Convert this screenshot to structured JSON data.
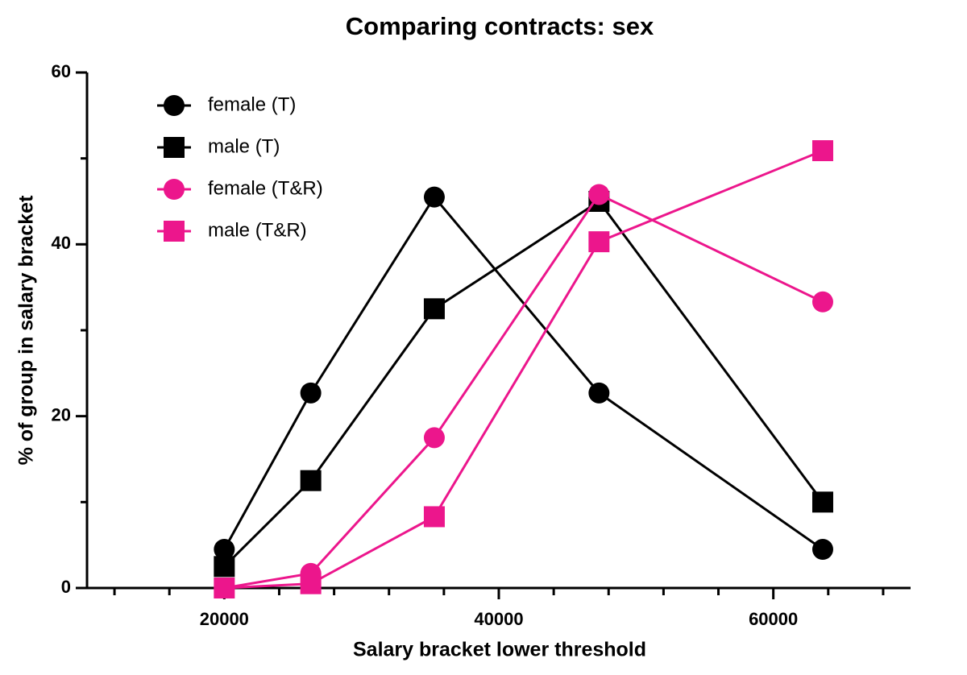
{
  "chart_data": {
    "type": "line",
    "title": "Comparing contracts: sex",
    "x_label": "Salary bracket lower threshold",
    "y_label": "% of group in salary bracket",
    "x": [
      20000,
      26300,
      35300,
      47300,
      63600
    ],
    "series": [
      {
        "name": "female (T)",
        "color": "#000000",
        "marker": "circle",
        "values": [
          4.5,
          22.7,
          45.5,
          22.7,
          4.5
        ]
      },
      {
        "name": "male (T)",
        "color": "#000000",
        "marker": "square",
        "values": [
          2.5,
          12.5,
          32.5,
          45,
          10
        ]
      },
      {
        "name": "female (T&R)",
        "color": "#ec168c",
        "marker": "circle",
        "values": [
          0,
          1.7,
          17.5,
          45.8,
          33.3
        ]
      },
      {
        "name": "male (T&R)",
        "color": "#ec168c",
        "marker": "square",
        "values": [
          0,
          0.5,
          8.3,
          40.3,
          50.9
        ]
      }
    ],
    "xlim": [
      10000,
      70000
    ],
    "xticks": [
      20000,
      40000,
      60000
    ],
    "xminor_ticks": [
      12000,
      16000,
      24000,
      28000,
      32000,
      36000,
      44000,
      48000,
      52000,
      56000,
      64000,
      68000
    ],
    "ylim": [
      0,
      60
    ],
    "yticks": [
      0,
      20,
      40,
      60
    ],
    "yminor_ticks": [
      10,
      30,
      50
    ],
    "legend": "top-left"
  }
}
